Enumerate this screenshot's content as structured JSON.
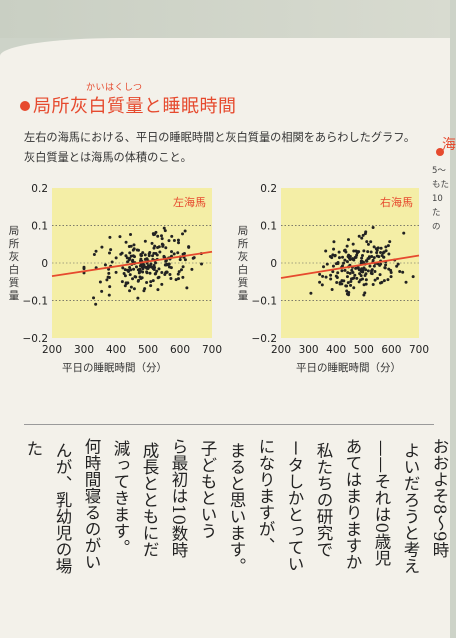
{
  "title": {
    "text": "局所灰白質量と睡眠時間",
    "ruby": "かいはくしつ",
    "color": "#e64a2e"
  },
  "caption": "左右の海馬における、平日の睡眠時間と灰白質量の相関をあらわしたグラフ。灰白質量とは海馬の体積のこと。",
  "chart_data": [
    {
      "type": "scatter",
      "title": "左海馬",
      "xlabel": "平日の睡眠時間（分）",
      "ylabel": "局所灰白質量",
      "xlim": [
        200,
        700
      ],
      "ylim": [
        -0.2,
        0.2
      ],
      "xticks": [
        "200",
        "300",
        "400",
        "500",
        "600",
        "700"
      ],
      "yticks": [
        "0.2",
        "0.1",
        "0",
        "−0.1",
        "−0.2"
      ],
      "trendline": {
        "x": [
          200,
          700
        ],
        "y": [
          -0.035,
          0.03
        ]
      },
      "background": "#f4eea6",
      "point_color": "#222222",
      "trend_color": "#e64a2e"
    },
    {
      "type": "scatter",
      "title": "右海馬",
      "xlabel": "平日の睡眠時間（分）",
      "ylabel": "局所灰白質量",
      "xlim": [
        200,
        700
      ],
      "ylim": [
        -0.2,
        0.2
      ],
      "xticks": [
        "200",
        "300",
        "400",
        "500",
        "600",
        "700"
      ],
      "yticks": [
        "0.2",
        "0.1",
        "0",
        "−0.1",
        "−0.2"
      ],
      "trendline": {
        "x": [
          200,
          700
        ],
        "y": [
          -0.04,
          0.02
        ]
      },
      "background": "#f4eea6",
      "point_color": "#222222",
      "trend_color": "#e64a2e"
    }
  ],
  "body_columns": [
    "おおよそ8〜9時",
    "よいだろうと考え",
    "——それは0歳児",
    "あてはまりますか",
    "私たちの研究で",
    "ータしかとってい",
    "になりますが、",
    "まると思います。",
    "子どもという",
    "ら最初は10数時",
    "成長とともにだ",
    "減ってきます。",
    "何時間寝るのがい",
    "んが、乳幼児の場",
    "た"
  ],
  "right_strip": {
    "heading": "海",
    "lines": "5〜 もた 10 た の"
  }
}
